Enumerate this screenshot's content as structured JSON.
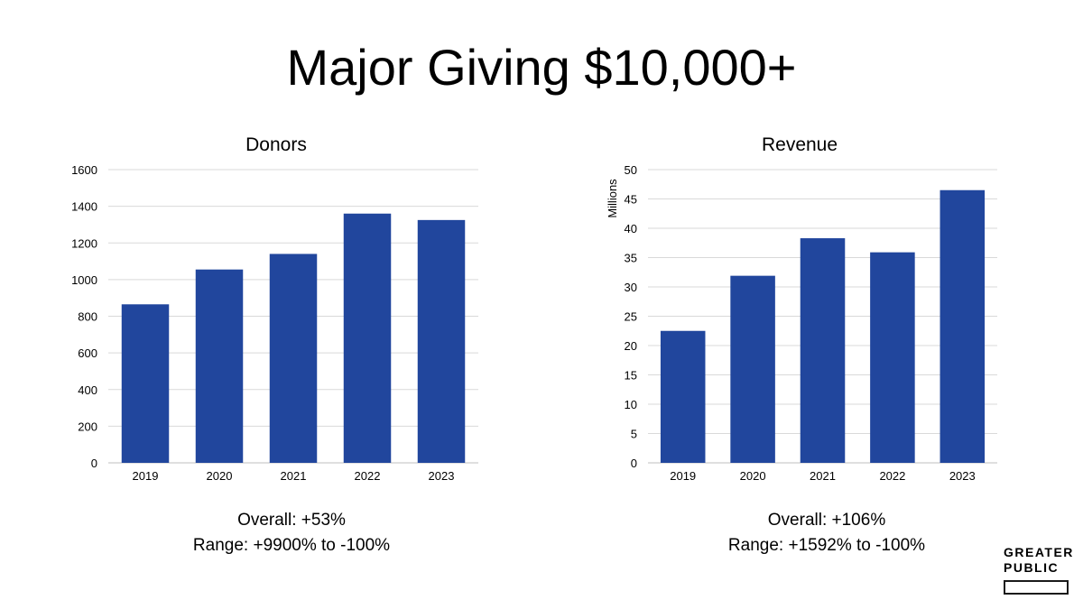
{
  "title": "Major Giving $10,000+",
  "colors": {
    "bar": "#21469d",
    "grid": "#d9d9d9",
    "axis": "#bfbfbf"
  },
  "chart_data": [
    {
      "type": "bar",
      "title": "Donors",
      "categories": [
        "2019",
        "2020",
        "2021",
        "2022",
        "2023"
      ],
      "values": [
        865,
        1055,
        1140,
        1360,
        1325
      ],
      "xlabel": "",
      "ylabel": "",
      "ylim": [
        0,
        1600
      ],
      "yticks": [
        "0",
        "200",
        "400",
        "600",
        "800",
        "1000",
        "1200",
        "1400",
        "1600"
      ],
      "grid": true,
      "legend": "none"
    },
    {
      "type": "bar",
      "title": "Revenue",
      "categories": [
        "2019",
        "2020",
        "2021",
        "2022",
        "2023"
      ],
      "values": [
        22.5,
        31.9,
        38.3,
        35.9,
        46.5
      ],
      "xlabel": "",
      "ylabel": "Millions",
      "ylim": [
        0,
        50
      ],
      "yticks": [
        "0",
        "5",
        "10",
        "15",
        "20",
        "25",
        "30",
        "35",
        "40",
        "45",
        "50"
      ],
      "grid": true,
      "legend": "none"
    }
  ],
  "summaries": [
    {
      "overall": "Overall: +53%",
      "range": "Range: +9900% to -100%"
    },
    {
      "overall": "Overall: +106%",
      "range": "Range: +1592% to -100%"
    }
  ],
  "logo": {
    "line1": "GREATER",
    "line2": "PUBLIC"
  }
}
